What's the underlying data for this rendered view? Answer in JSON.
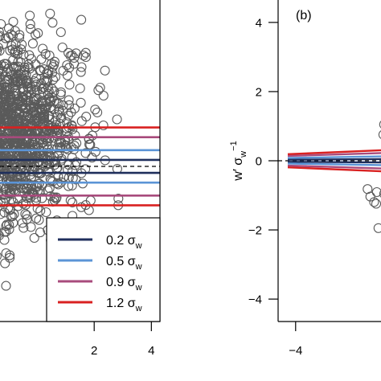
{
  "chart_data": [
    {
      "type": "scatter",
      "panel": "a",
      "xlim": [
        -2.7,
        4.3
      ],
      "ylim": [
        -4.3,
        4.3
      ],
      "x_ticks": [
        2,
        4
      ],
      "dashed_reference_y": 0,
      "series": [
        {
          "name": "0.2 σw",
          "sigma": 0.2,
          "color": "#1f2f5c",
          "y_offset": 0.18
        },
        {
          "name": "0.5 σw",
          "sigma": 0.5,
          "color": "#5b94d6",
          "y_offset": 0.45
        },
        {
          "name": "0.9 σw",
          "sigma": 0.9,
          "color": "#a84b7c",
          "y_offset": 0.81
        },
        {
          "name": "1.2 σw",
          "sigma": 1.2,
          "color": "#d92121",
          "y_offset": 1.08
        }
      ],
      "legend": {
        "placement": "bottom-right",
        "entries": [
          {
            "sym": "0.2 σ",
            "sub": "w"
          },
          {
            "sym": "0.5 σ",
            "sub": "w"
          },
          {
            "sym": "0.9 σ",
            "sub": "w"
          },
          {
            "sym": "1.2 σ",
            "sub": "w"
          }
        ]
      },
      "points": {
        "count": 1400,
        "seed": 7,
        "center": [
          -0.9,
          0.9
        ],
        "spread": [
          1.2,
          1.3
        ]
      }
    },
    {
      "type": "scatter",
      "panel": "b",
      "label": "(b)",
      "xlim": [
        -4.3,
        1.1
      ],
      "ylim": [
        -4.3,
        4.3
      ],
      "x_ticks": [
        -4
      ],
      "x_tick_labels": [
        "−4"
      ],
      "y_ticks": [
        -4,
        -2,
        0,
        2,
        4
      ],
      "y_tick_labels": [
        "−4",
        "−2",
        "0",
        "2",
        "4"
      ],
      "ylabel": {
        "main": "w′ σ",
        "sub": "w",
        "sup": "−1"
      },
      "dashed_reference_y": 0,
      "fan": {
        "x_start": -4.3,
        "x_end": 1.1,
        "start_half_widths": [
          0.03,
          0.08,
          0.14,
          0.19
        ],
        "end_scale": 1.9
      },
      "points": {
        "count": 160,
        "seed": 21,
        "center": [
          0.6,
          -0.55
        ],
        "spread": [
          0.6,
          0.75
        ]
      }
    }
  ]
}
